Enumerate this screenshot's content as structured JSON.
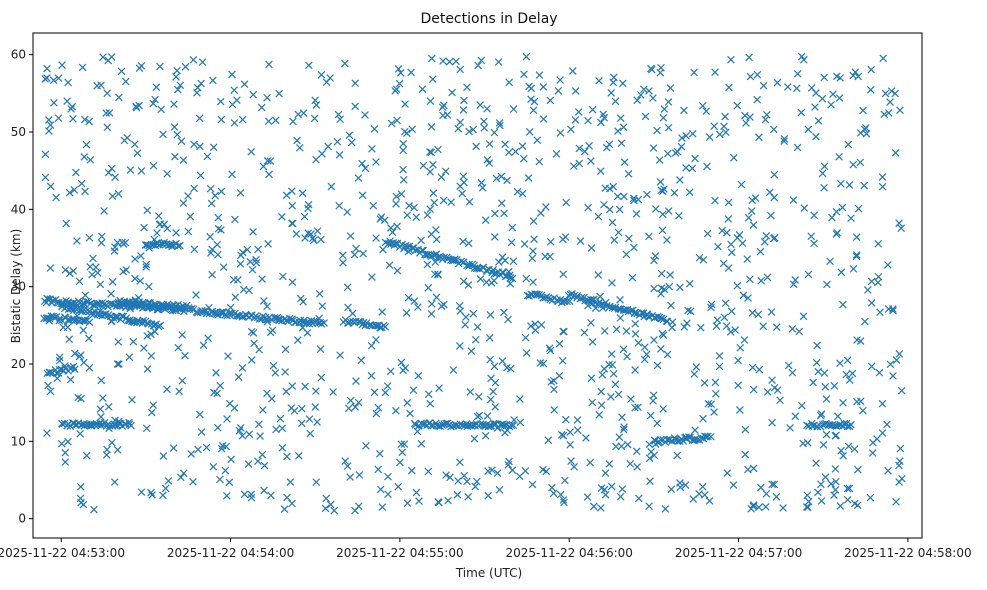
{
  "chart_data": {
    "type": "scatter",
    "title": "Detections in Delay",
    "xlabel": "Time (UTC)",
    "ylabel": "Bistatic Delay (km)",
    "marker": "x",
    "color": "#1f77b4",
    "grid": false,
    "legend": "none",
    "x_range": [
      "2025-11-22 04:52:50",
      "2025-11-22 04:58:05"
    ],
    "ylim": [
      -2.5,
      62.8
    ],
    "x_ticks": [
      "2025-11-22 04:53:00",
      "2025-11-22 04:54:00",
      "2025-11-22 04:55:00",
      "2025-11-22 04:56:00",
      "2025-11-22 04:57:00",
      "2025-11-22 04:58:00"
    ],
    "y_ticks": [
      "0",
      "10",
      "20",
      "30",
      "40",
      "50",
      "60"
    ],
    "data_start": "2025-11-22 04:52:54",
    "data_end": "2025-11-22 04:57:58",
    "tracks": [
      {
        "t0": "2025-11-22 04:52:54",
        "t1": "2025-11-22 04:53:44",
        "y0": 28.2,
        "y1": 27.0
      },
      {
        "t0": "2025-11-22 04:52:54",
        "t1": "2025-11-22 04:53:10",
        "y0": 26.0,
        "y1": 25.6
      },
      {
        "t0": "2025-11-22 04:53:00",
        "t1": "2025-11-22 04:53:35",
        "y0": 27.5,
        "y1": 25.0
      },
      {
        "t0": "2025-11-22 04:53:20",
        "t1": "2025-11-22 04:53:47",
        "y0": 28.0,
        "y1": 27.3
      },
      {
        "t0": "2025-11-22 04:53:48",
        "t1": "2025-11-22 04:54:33",
        "y0": 26.8,
        "y1": 25.2
      },
      {
        "t0": "2025-11-22 04:54:40",
        "t1": "2025-11-22 04:54:55",
        "y0": 25.5,
        "y1": 24.8
      },
      {
        "t0": "2025-11-22 04:54:55",
        "t1": "2025-11-22 04:55:40",
        "y0": 35.8,
        "y1": 31.3
      },
      {
        "t0": "2025-11-22 04:55:45",
        "t1": "2025-11-22 04:56:00",
        "y0": 29.0,
        "y1": 28.0
      },
      {
        "t0": "2025-11-22 04:56:00",
        "t1": "2025-11-22 04:56:35",
        "y0": 29.0,
        "y1": 25.5
      },
      {
        "t0": "2025-11-22 04:53:00",
        "t1": "2025-11-22 04:53:25",
        "y0": 12.2,
        "y1": 12.2
      },
      {
        "t0": "2025-11-22 04:55:05",
        "t1": "2025-11-22 04:55:40",
        "y0": 12.2,
        "y1": 12.0
      },
      {
        "t0": "2025-11-22 04:57:25",
        "t1": "2025-11-22 04:57:40",
        "y0": 12.1,
        "y1": 12.1
      },
      {
        "t0": "2025-11-22 04:56:30",
        "t1": "2025-11-22 04:56:50",
        "y0": 10.0,
        "y1": 10.5
      },
      {
        "t0": "2025-11-22 04:52:55",
        "t1": "2025-11-22 04:53:05",
        "y0": 18.8,
        "y1": 19.5
      },
      {
        "t0": "2025-11-22 04:53:30",
        "t1": "2025-11-22 04:53:42",
        "y0": 35.5,
        "y1": 35.5
      }
    ],
    "random_points": 1300
  }
}
